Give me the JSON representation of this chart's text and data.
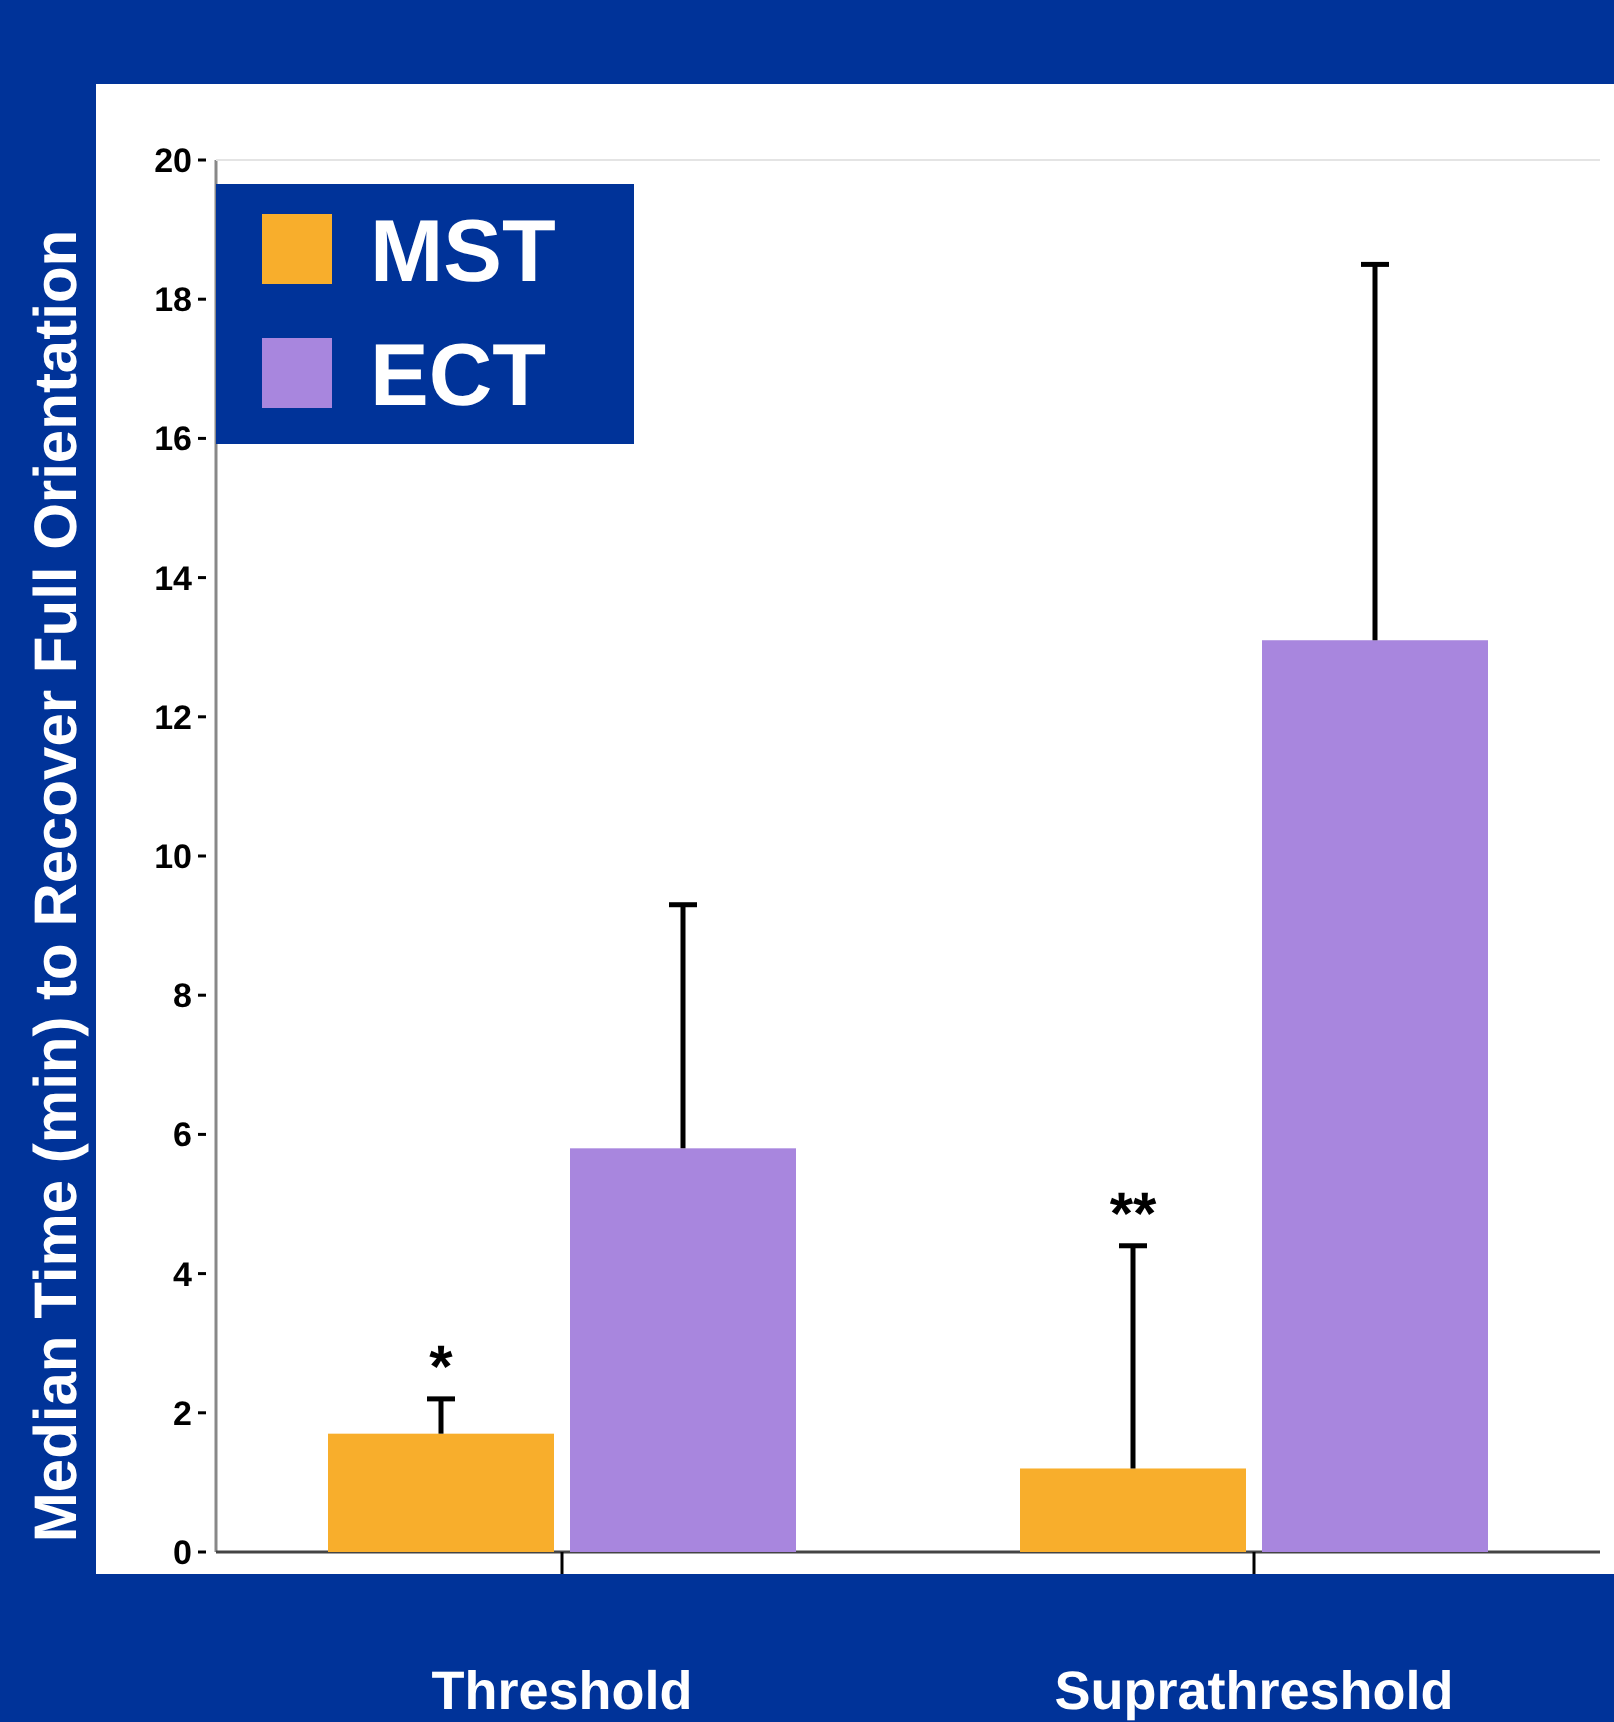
{
  "chart_data": {
    "type": "bar",
    "ylabel": "Median Time (min) to Recover Full Orientation",
    "categories": [
      "Threshold",
      "Suprathreshold"
    ],
    "series": [
      {
        "name": "MST",
        "color": "#f8ae2c",
        "values": [
          1.7,
          1.2
        ],
        "errors": [
          [
            1.7,
            2.2
          ],
          [
            1.2,
            4.4
          ]
        ]
      },
      {
        "name": "ECT",
        "color": "#a886de",
        "values": [
          5.8,
          13.1
        ],
        "errors": [
          [
            5.8,
            9.3
          ],
          [
            13.1,
            18.5
          ]
        ]
      }
    ],
    "ylim": [
      0,
      20
    ],
    "yticks": [
      0,
      2,
      4,
      6,
      8,
      10,
      12,
      14,
      16,
      18,
      20
    ],
    "grid": false,
    "legend": "top left",
    "annotations": [
      {
        "text": "*",
        "x": "Threshold",
        "y": 2.2
      },
      {
        "text": "**",
        "x": "Suprathreshold",
        "y": 4.4
      }
    ]
  }
}
